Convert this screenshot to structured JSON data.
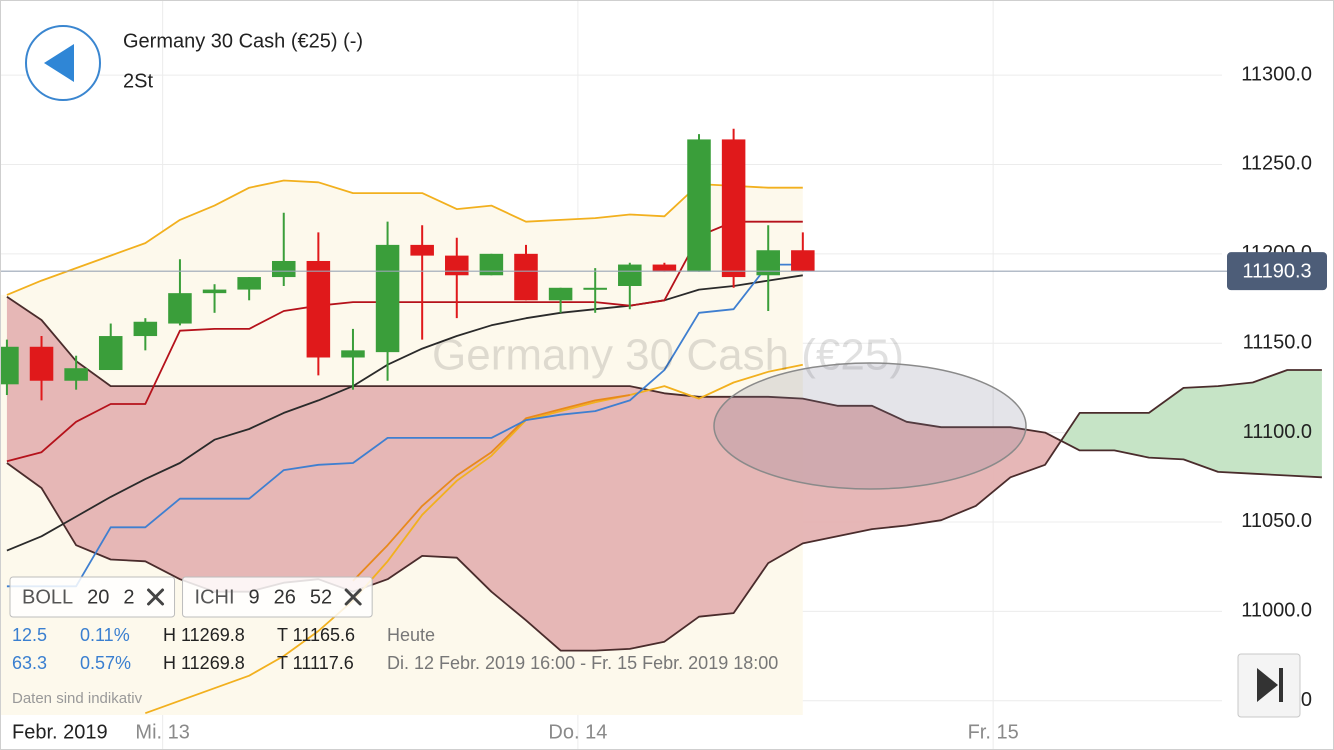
{
  "header": {
    "title": "Germany 30 Cash (€25) (-)",
    "interval": "2St"
  },
  "chart_data": {
    "type": "candlestick",
    "watermark": "Germany 30 Cash (€25)",
    "x": [
      0,
      1,
      2,
      3,
      4,
      5,
      6,
      7,
      8,
      9,
      10,
      11,
      12,
      13,
      14,
      15,
      16,
      17,
      18,
      19,
      20,
      21,
      22,
      23
    ],
    "open": [
      11127,
      11148,
      11129,
      11135,
      11154,
      11161,
      11178,
      11180,
      11187,
      11196,
      11142,
      11145,
      11205,
      11199,
      11188,
      11200,
      11174,
      11180,
      11182,
      11194,
      11190,
      11264,
      11188,
      11202
    ],
    "high": [
      11152,
      11154,
      11143,
      11161,
      11164,
      11197,
      11183,
      11187,
      11223,
      11212,
      11158,
      11218,
      11216,
      11209,
      11200,
      11205,
      11181,
      11192,
      11195,
      11195,
      11267,
      11270,
      11216,
      11212
    ],
    "low": [
      11121,
      11118,
      11124,
      11135,
      11146,
      11160,
      11167,
      11174,
      11182,
      11132,
      11124,
      11129,
      11152,
      11164,
      11188,
      11174,
      11167,
      11167,
      11169,
      11190,
      11190,
      11181,
      11168,
      11190
    ],
    "close": [
      11148,
      11129,
      11136,
      11154,
      11162,
      11178,
      11180,
      11187,
      11196,
      11142,
      11146,
      11205,
      11199,
      11188,
      11200,
      11174,
      11181,
      11181,
      11194,
      11190,
      11264,
      11187,
      11202,
      11190.3
    ],
    "up_color": "#3a9e3a",
    "down_color": "#e0191b",
    "series": [
      {
        "color": "#f2b01e",
        "values": [
          11177,
          11185,
          11192,
          11199,
          11206,
          11219,
          11227,
          11237,
          11241,
          11240,
          11234,
          11234,
          11234,
          11225,
          11227,
          11218,
          11219,
          11220,
          11222,
          11221,
          11239,
          11238,
          11237,
          11237
        ]
      },
      {
        "color": "#f2b01e",
        "values": [
          null,
          null,
          null,
          null,
          10943,
          10950,
          10957,
          10964,
          10975,
          10989,
          11006,
          11028,
          11054,
          11073,
          11087,
          11107,
          11112,
          11117,
          11121,
          11126,
          11119,
          11128,
          11134,
          11138
        ]
      },
      {
        "color": "#2a2a2a",
        "values": [
          11034,
          11042,
          11053,
          11064,
          11074,
          11083,
          11096,
          11102,
          11111,
          11118,
          11126,
          11138,
          11147,
          11154,
          11160,
          11164,
          11167,
          11169,
          11171,
          11174,
          11180,
          11182,
          11185,
          11188
        ]
      },
      {
        "color": "#e8891c",
        "values": [
          null,
          null,
          null,
          null,
          null,
          null,
          null,
          null,
          null,
          null,
          11017,
          11037,
          11059,
          11076,
          11089,
          11108,
          11113,
          11118,
          11121,
          null,
          null,
          null,
          null,
          null
        ]
      },
      {
        "color": "#3f7fd0",
        "values": [
          11014,
          11014,
          11014,
          11047,
          11047,
          11063,
          11063,
          11063,
          11079,
          11082,
          11083,
          11097,
          11097,
          11097,
          11097,
          11107,
          11110,
          11112,
          11118,
          11135,
          11167,
          11169,
          11194,
          11194
        ]
      },
      {
        "color": "#b5121b",
        "values": [
          11084,
          11089,
          11106,
          11116,
          11116,
          11157,
          11158,
          11158,
          11168,
          11171,
          11173,
          11173,
          11173,
          11173,
          11173,
          11173,
          11173,
          11173,
          11171,
          11174,
          11210,
          11218,
          11218,
          11218
        ]
      }
    ],
    "cloud": {
      "x": [
        0,
        1,
        2,
        3,
        4,
        5,
        6,
        7,
        8,
        9,
        10,
        11,
        12,
        13,
        14,
        15,
        16,
        17,
        18,
        19,
        20,
        21,
        22,
        23,
        24,
        25,
        26,
        27,
        28,
        29,
        30,
        31,
        32,
        33,
        34,
        35,
        36,
        37,
        38
      ],
      "span_a": [
        11083,
        11069,
        11037,
        11029,
        11028,
        11018,
        11011,
        11011,
        11016,
        11018,
        11011,
        11018,
        11031,
        11030,
        11011,
        10995,
        10978,
        10978,
        10979,
        10983,
        10997,
        10999,
        11027,
        11038,
        11042,
        11046,
        11048,
        11051,
        11059,
        11075,
        11082,
        11111,
        11111,
        11111,
        11125,
        11126,
        11128,
        11135,
        11135
      ],
      "span_b": [
        11176,
        11163,
        11140,
        11126,
        11126,
        11126,
        11126,
        11126,
        11126,
        11126,
        11126,
        11126,
        11126,
        11126,
        11126,
        11126,
        11126,
        11126,
        11126,
        11122,
        11120,
        11120,
        11120,
        11119,
        11115,
        11115,
        11106,
        11103,
        11103,
        11103,
        11100,
        11090,
        11090,
        11086,
        11085,
        11078,
        11077,
        11076,
        11075
      ],
      "bear_color": "#e5b3b3",
      "bull_color": "#c3e3c3",
      "line_color": "#4a2c2c"
    },
    "last_price": 11190.3,
    "xlim": [
      -0.2,
      38.35
    ],
    "ylim": [
      10942,
      11342
    ],
    "yticks": [
      {
        "value": 10950,
        "label": "10950.0"
      },
      {
        "value": 11000,
        "label": "11000.0"
      },
      {
        "value": 11050,
        "label": "11050.0"
      },
      {
        "value": 11100,
        "label": "11100.0"
      },
      {
        "value": 11150,
        "label": "11150.0"
      },
      {
        "value": 11200,
        "label": "11200.0"
      },
      {
        "value": 11250,
        "label": "11250.0"
      },
      {
        "value": 11300,
        "label": "11300.0"
      }
    ],
    "xticks": [
      {
        "value": 4.5,
        "label": "Mi. 13"
      },
      {
        "value": 16.5,
        "label": "Do. 14"
      },
      {
        "value": 28.5,
        "label": "Fr. 15"
      }
    ],
    "x_period": "Febr. 2019",
    "grid": true
  },
  "indicators": [
    {
      "name": "BOLL",
      "params": [
        "20",
        "2"
      ]
    },
    {
      "name": "ICHI",
      "params": [
        "9",
        "26",
        "52"
      ]
    }
  ],
  "info": {
    "rows": [
      [
        "12.5",
        "0.11%",
        "H 11269.8",
        "T 11165.6",
        "Heute"
      ],
      [
        "63.3",
        "0.57%",
        "H 11269.8",
        "T 11117.6",
        "Di. 12 Febr. 2019 16:00 - Fr. 15 Febr. 2019 18:00"
      ]
    ]
  },
  "disclaimer": "Daten sind indikativ"
}
